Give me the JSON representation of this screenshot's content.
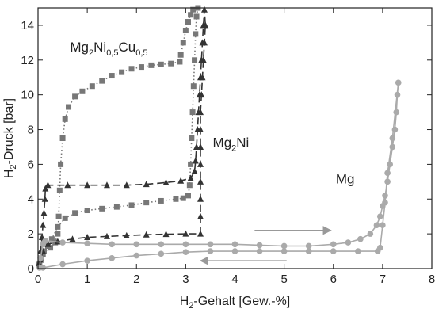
{
  "chart_data": {
    "type": "scatter",
    "title": "",
    "xlabel": {
      "pre": "H",
      "sub": "2",
      "post": "-Gehalt [Gew.-%]"
    },
    "ylabel": {
      "pre": "H",
      "sub": "2",
      "post": "-Druck [bar]"
    },
    "xlim": [
      0,
      8
    ],
    "ylim": [
      0,
      15
    ],
    "xticks": [
      0,
      1,
      2,
      3,
      4,
      5,
      6,
      7,
      8
    ],
    "yticks": [
      0,
      2,
      4,
      6,
      8,
      10,
      12,
      14
    ],
    "grid": false,
    "labels": [
      {
        "id": "mg2ni05cu05",
        "parts": [
          [
            "Mg",
            ""
          ],
          [
            "2",
            "sub"
          ],
          [
            "Ni",
            ""
          ],
          [
            "0,5",
            "sub"
          ],
          [
            "Cu",
            ""
          ],
          [
            "0,5",
            "sub"
          ]
        ],
        "x": 0.65,
        "y": 12.5
      },
      {
        "id": "mg2ni",
        "parts": [
          [
            "Mg",
            ""
          ],
          [
            "2",
            "sub"
          ],
          [
            "Ni",
            ""
          ]
        ],
        "x": 3.55,
        "y": 7.0
      },
      {
        "id": "mg",
        "parts": [
          [
            "Mg",
            ""
          ]
        ],
        "x": 6.05,
        "y": 4.9
      }
    ],
    "arrows": [
      {
        "from": [
          4.4,
          2.2
        ],
        "to": [
          5.95,
          2.2
        ],
        "direction": "right",
        "color": "#999999"
      },
      {
        "from": [
          5.05,
          0.45
        ],
        "to": [
          3.3,
          0.45
        ],
        "direction": "left",
        "color": "#999999"
      }
    ],
    "series": [
      {
        "marker": "square",
        "color": "#777777",
        "line": "dotted",
        "points": [
          [
            0.02,
            0.2
          ],
          [
            0.06,
            0.6
          ],
          [
            0.12,
            1.0
          ],
          [
            0.2,
            1.3
          ],
          [
            0.28,
            1.7
          ],
          [
            0.4,
            2.4
          ],
          [
            0.55,
            2.9
          ],
          [
            0.75,
            3.2
          ],
          [
            1.0,
            3.35
          ],
          [
            1.3,
            3.45
          ],
          [
            1.6,
            3.55
          ],
          [
            1.9,
            3.65
          ],
          [
            2.2,
            3.8
          ],
          [
            2.5,
            3.9
          ],
          [
            2.8,
            4.0
          ],
          [
            2.95,
            4.05
          ],
          [
            3.05,
            4.2
          ],
          [
            3.08,
            4.8
          ],
          [
            3.1,
            6.0
          ],
          [
            3.12,
            7.5
          ],
          [
            3.14,
            9.0
          ],
          [
            3.16,
            10.5
          ],
          [
            3.18,
            12.0
          ],
          [
            3.2,
            13.5
          ],
          [
            3.22,
            14.5
          ],
          [
            3.25,
            15.0
          ],
          [
            3.15,
            14.9
          ],
          [
            3.1,
            14.6
          ],
          [
            3.05,
            14.2
          ],
          [
            3.0,
            13.7
          ],
          [
            2.95,
            13.0
          ],
          [
            2.9,
            12.3
          ],
          [
            2.88,
            11.9
          ],
          [
            2.7,
            11.8
          ],
          [
            2.5,
            11.75
          ],
          [
            2.3,
            11.7
          ],
          [
            2.1,
            11.6
          ],
          [
            1.9,
            11.5
          ],
          [
            1.7,
            11.3
          ],
          [
            1.5,
            11.1
          ],
          [
            1.3,
            10.8
          ],
          [
            1.1,
            10.5
          ],
          [
            0.9,
            10.2
          ],
          [
            0.75,
            9.9
          ],
          [
            0.62,
            9.3
          ],
          [
            0.55,
            8.6
          ],
          [
            0.5,
            7.5
          ],
          [
            0.46,
            6.0
          ],
          [
            0.44,
            4.5
          ],
          [
            0.42,
            3.0
          ],
          [
            0.4,
            2.0
          ],
          [
            0.35,
            1.5
          ],
          [
            0.25,
            1.2
          ],
          [
            0.1,
            0.8
          ],
          [
            0.03,
            0.3
          ]
        ]
      },
      {
        "marker": "triangle",
        "color": "#333333",
        "line": "dashed",
        "points": [
          [
            0.02,
            0.3
          ],
          [
            0.05,
            1.0
          ],
          [
            0.08,
            1.8
          ],
          [
            0.1,
            2.5
          ],
          [
            0.12,
            3.2
          ],
          [
            0.14,
            4.0
          ],
          [
            0.15,
            4.6
          ],
          [
            0.2,
            4.8
          ],
          [
            0.6,
            4.8
          ],
          [
            1.0,
            4.8
          ],
          [
            1.4,
            4.8
          ],
          [
            1.8,
            4.8
          ],
          [
            2.2,
            4.85
          ],
          [
            2.6,
            4.95
          ],
          [
            2.9,
            5.05
          ],
          [
            3.1,
            5.2
          ],
          [
            3.18,
            5.6
          ],
          [
            3.2,
            6.2
          ],
          [
            3.22,
            7.0
          ],
          [
            3.24,
            8.0
          ],
          [
            3.26,
            9.0
          ],
          [
            3.28,
            10.0
          ],
          [
            3.3,
            11.0
          ],
          [
            3.32,
            12.0
          ],
          [
            3.34,
            13.0
          ],
          [
            3.36,
            14.0
          ],
          [
            3.38,
            14.9
          ],
          [
            3.4,
            14.0
          ],
          [
            3.38,
            13.0
          ],
          [
            3.36,
            12.0
          ],
          [
            3.34,
            11.0
          ],
          [
            3.32,
            10.0
          ],
          [
            3.3,
            9.0
          ],
          [
            3.3,
            8.0
          ],
          [
            3.3,
            7.0
          ],
          [
            3.3,
            6.0
          ],
          [
            3.3,
            5.0
          ],
          [
            3.3,
            4.0
          ],
          [
            3.3,
            3.0
          ],
          [
            3.3,
            2.0
          ],
          [
            3.0,
            2.0
          ],
          [
            2.6,
            1.98
          ],
          [
            2.2,
            1.95
          ],
          [
            1.8,
            1.9
          ],
          [
            1.4,
            1.85
          ],
          [
            1.0,
            1.8
          ],
          [
            0.7,
            1.7
          ],
          [
            0.4,
            1.55
          ],
          [
            0.2,
            1.4
          ],
          [
            0.1,
            1.0
          ],
          [
            0.05,
            0.5
          ]
        ]
      },
      {
        "marker": "circle",
        "color": "#aaaaaa",
        "line": "solid",
        "points": [
          [
            0.03,
            0.05
          ],
          [
            0.05,
            0.6
          ],
          [
            0.1,
            1.4
          ],
          [
            0.15,
            1.6
          ],
          [
            0.5,
            1.5
          ],
          [
            1.0,
            1.45
          ],
          [
            1.5,
            1.4
          ],
          [
            2.0,
            1.4
          ],
          [
            2.5,
            1.4
          ],
          [
            3.0,
            1.4
          ],
          [
            3.5,
            1.4
          ],
          [
            4.0,
            1.4
          ],
          [
            4.5,
            1.35
          ],
          [
            5.0,
            1.3
          ],
          [
            5.5,
            1.3
          ],
          [
            6.0,
            1.4
          ],
          [
            6.3,
            1.5
          ],
          [
            6.55,
            1.7
          ],
          [
            6.75,
            2.0
          ],
          [
            6.88,
            2.5
          ],
          [
            6.95,
            3.0
          ],
          [
            7.0,
            3.6
          ],
          [
            7.05,
            4.2
          ],
          [
            7.1,
            5.0
          ],
          [
            7.15,
            6.0
          ],
          [
            7.2,
            7.0
          ],
          [
            7.25,
            8.0
          ],
          [
            7.28,
            9.0
          ],
          [
            7.3,
            10.0
          ],
          [
            7.32,
            10.7
          ],
          [
            7.2,
            7.5
          ],
          [
            7.1,
            5.5
          ],
          [
            7.05,
            3.8
          ],
          [
            7.0,
            2.5
          ],
          [
            6.95,
            1.2
          ],
          [
            6.9,
            1.0
          ],
          [
            6.5,
            1.0
          ],
          [
            6.0,
            1.0
          ],
          [
            5.5,
            1.0
          ],
          [
            5.0,
            1.0
          ],
          [
            4.5,
            1.0
          ],
          [
            4.0,
            1.0
          ],
          [
            3.5,
            1.0
          ],
          [
            3.0,
            0.95
          ],
          [
            2.5,
            0.85
          ],
          [
            2.0,
            0.75
          ],
          [
            1.5,
            0.6
          ],
          [
            1.0,
            0.45
          ],
          [
            0.5,
            0.25
          ],
          [
            0.1,
            0.05
          ]
        ]
      }
    ]
  }
}
